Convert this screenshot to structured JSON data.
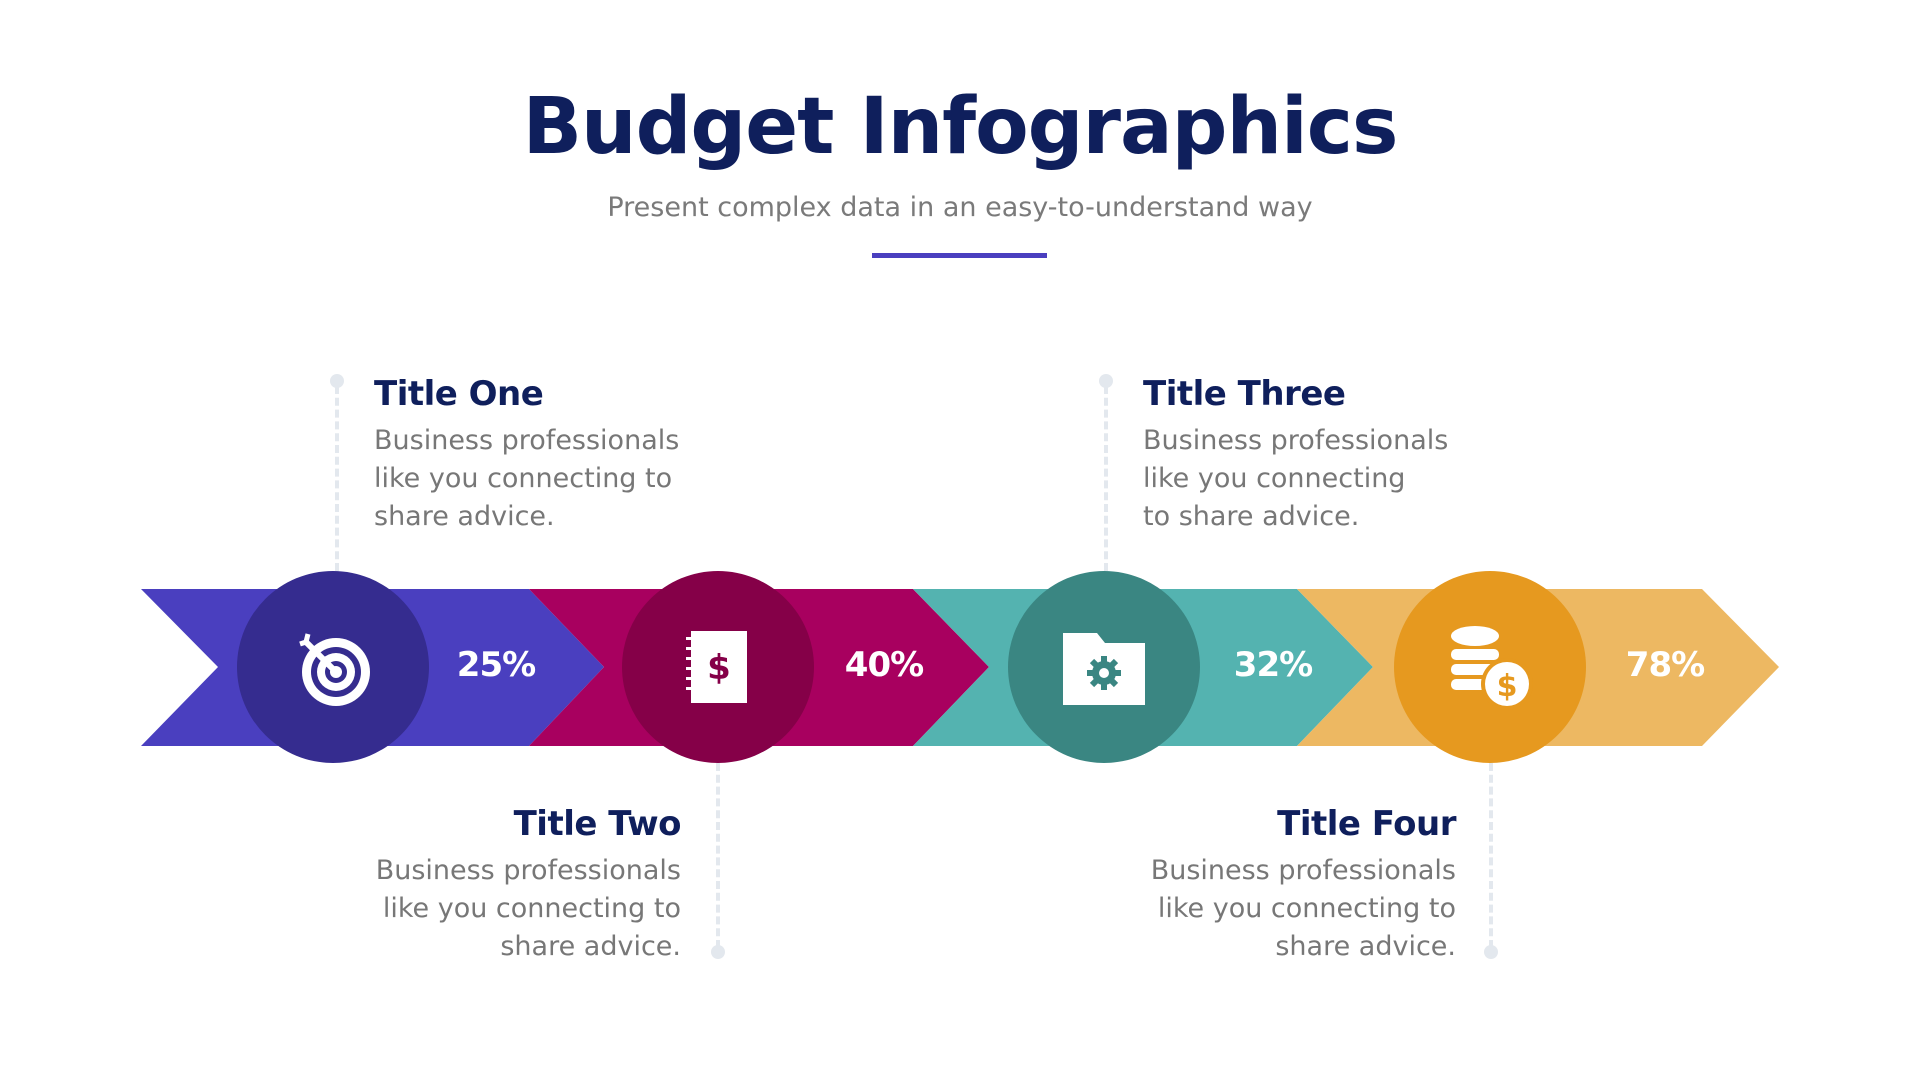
{
  "header": {
    "title": "Budget Infographics",
    "subtitle": "Present complex data in an easy-to-understand way",
    "accent": "#4a3fbf"
  },
  "steps": [
    {
      "title": "Title One",
      "lines": [
        "Business professionals",
        "like you connecting to",
        "share advice."
      ],
      "percent": "25%",
      "icon": "target-icon",
      "color": "#4a3fbf",
      "dark": "#352c8f"
    },
    {
      "title": "Title Two",
      "lines": [
        "Business professionals",
        "like you connecting to",
        "share advice."
      ],
      "percent": "40%",
      "icon": "notebook-dollar-icon",
      "color": "#a8005f",
      "dark": "#850048"
    },
    {
      "title": "Title Three",
      "lines": [
        "Business professionals",
        "like you connecting",
        "to share advice."
      ],
      "percent": "32%",
      "icon": "folder-gear-icon",
      "color": "#54b3b0",
      "dark": "#3a8682"
    },
    {
      "title": "Title Four",
      "lines": [
        "Business professionals",
        "like you connecting to",
        "share advice."
      ],
      "percent": "78%",
      "icon": "coins-dollar-icon",
      "color": "#edb862",
      "dark": "#e6991f"
    }
  ]
}
